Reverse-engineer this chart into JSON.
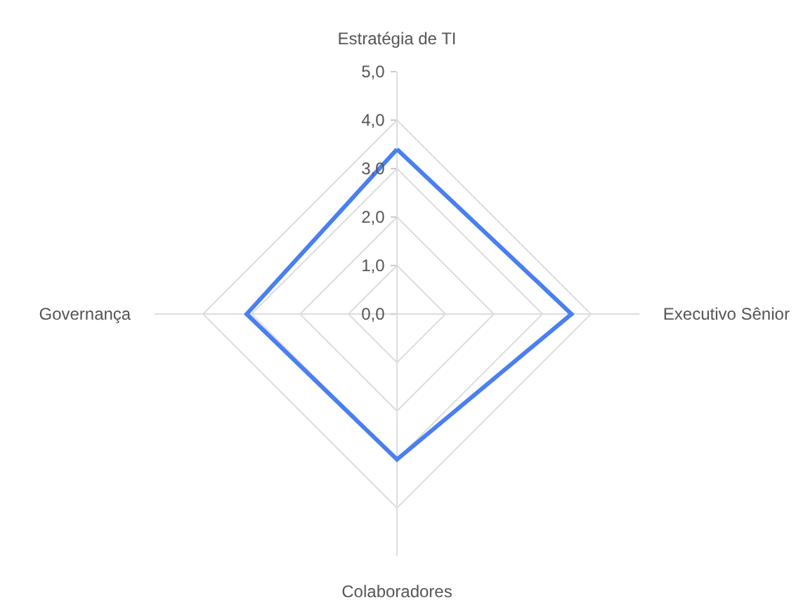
{
  "chart_data": {
    "type": "radar",
    "categories": [
      "Estratégia de TI",
      "Executivo Sênior",
      "Colaboradores",
      "Governança"
    ],
    "series": [
      {
        "color": "#4a7ff0",
        "values": [
          3.4,
          3.6,
          3.0,
          3.1
        ]
      }
    ],
    "ylim": [
      0,
      5
    ],
    "yticks": [
      {
        "value": 0,
        "label": "0,0"
      },
      {
        "value": 1,
        "label": "1,0"
      },
      {
        "value": 2,
        "label": "2,0"
      },
      {
        "value": 3,
        "label": "3,0"
      },
      {
        "value": 4,
        "label": "4,0"
      },
      {
        "value": 5,
        "label": "5,0"
      }
    ],
    "grid": true,
    "legend": false,
    "marker": "none",
    "line_style": "solid"
  }
}
